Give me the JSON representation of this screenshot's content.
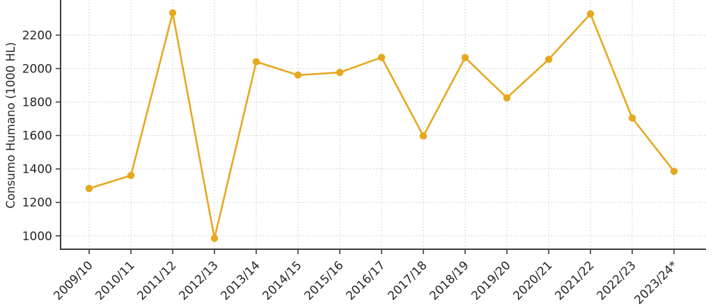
{
  "chart_data": {
    "type": "line",
    "title": "",
    "xlabel": "",
    "ylabel": "Consumo Humano (1000 HL)",
    "categories": [
      "2009/10",
      "2010/11",
      "2011/12",
      "2012/13",
      "2013/14",
      "2014/15",
      "2015/16",
      "2016/17",
      "2017/18",
      "2018/19",
      "2019/20",
      "2020/21",
      "2021/22",
      "2022/23",
      "2023/24*"
    ],
    "values": [
      1283,
      1361,
      2333,
      985,
      2041,
      1961,
      1977,
      2067,
      1597,
      2066,
      1825,
      2055,
      2327,
      1704,
      1386
    ],
    "yticks": [
      1000,
      1200,
      1400,
      1600,
      1800,
      2000,
      2200
    ],
    "ylim": [
      920,
      2410
    ],
    "grid": "dotted",
    "legend": "none",
    "line_color": "#E6A81E",
    "marker_color": "#E6A81E",
    "axis_color": "#3b3b3b",
    "grid_color": "#c9c9c9",
    "tick_label_color": "#262626"
  }
}
